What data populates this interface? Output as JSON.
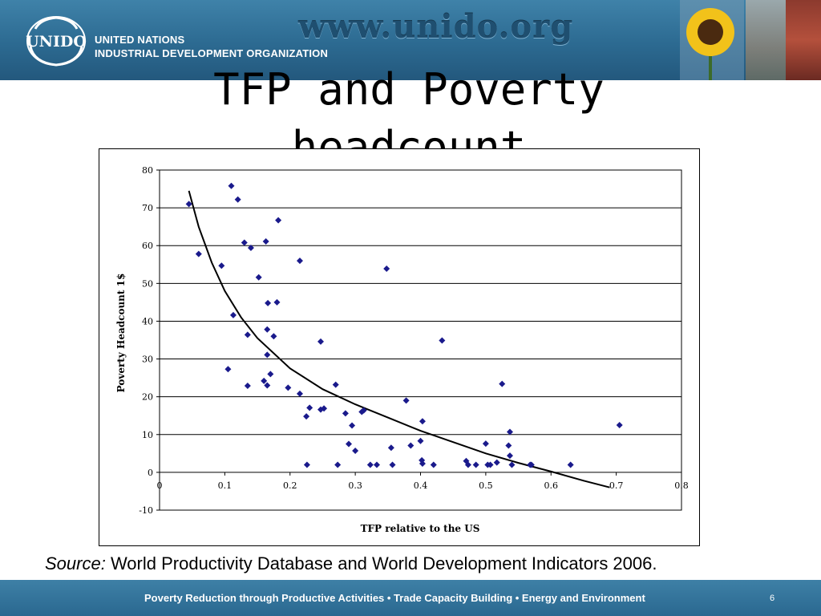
{
  "header": {
    "org_line1": "UNITED NATIONS",
    "org_line2": "INDUSTRIAL DEVELOPMENT ORGANIZATION",
    "logo_text": "UNIDO",
    "url": "www.unido.org"
  },
  "slide_title": "TFP and Poverty headcount",
  "source": {
    "label": "Source:",
    "text": " World Productivity Database and World Development Indicators 2006."
  },
  "footer": {
    "text": "Poverty Reduction through Productive Activities  •  Trade Capacity Building  •  Energy and Environment",
    "page": "6"
  },
  "chart_data": {
    "type": "scatter",
    "xlabel": "TFP relative to the US",
    "ylabel": "Poverty Headcount 1$",
    "xlim": [
      0,
      0.8
    ],
    "ylim": [
      -10,
      80
    ],
    "xticks": [
      "0",
      "0.1",
      "0.2",
      "0.3",
      "0.4",
      "0.5",
      "0.6",
      "0.7",
      "0.8"
    ],
    "yticks": [
      "-10",
      "0",
      "10",
      "20",
      "30",
      "40",
      "50",
      "60",
      "70",
      "80"
    ],
    "grid": "horizontal",
    "marker_color": "#1a1a8c",
    "trend_color": "#000000",
    "points": [
      [
        0.045,
        71
      ],
      [
        0.06,
        57.8
      ],
      [
        0.095,
        54.7
      ],
      [
        0.11,
        75.8
      ],
      [
        0.12,
        72.2
      ],
      [
        0.13,
        60.8
      ],
      [
        0.14,
        59.4
      ],
      [
        0.113,
        41.6
      ],
      [
        0.105,
        27.3
      ],
      [
        0.135,
        36.4
      ],
      [
        0.135,
        22.9
      ],
      [
        0.152,
        51.6
      ],
      [
        0.163,
        61.1
      ],
      [
        0.166,
        44.8
      ],
      [
        0.18,
        45
      ],
      [
        0.182,
        66.7
      ],
      [
        0.165,
        37.8
      ],
      [
        0.175,
        36
      ],
      [
        0.165,
        31.1
      ],
      [
        0.16,
        24.2
      ],
      [
        0.165,
        23
      ],
      [
        0.17,
        26
      ],
      [
        0.197,
        22.4
      ],
      [
        0.215,
        20.8
      ],
      [
        0.215,
        56
      ],
      [
        0.225,
        14.8
      ],
      [
        0.23,
        17.1
      ],
      [
        0.226,
        2
      ],
      [
        0.247,
        34.6
      ],
      [
        0.247,
        16.6
      ],
      [
        0.252,
        16.9
      ],
      [
        0.27,
        23.2
      ],
      [
        0.273,
        2
      ],
      [
        0.285,
        15.6
      ],
      [
        0.29,
        7.5
      ],
      [
        0.295,
        12.4
      ],
      [
        0.3,
        5.7
      ],
      [
        0.31,
        16
      ],
      [
        0.313,
        16.4
      ],
      [
        0.323,
        2
      ],
      [
        0.333,
        2
      ],
      [
        0.348,
        53.9
      ],
      [
        0.355,
        6.5
      ],
      [
        0.357,
        2
      ],
      [
        0.378,
        19
      ],
      [
        0.385,
        7.1
      ],
      [
        0.4,
        8.3
      ],
      [
        0.402,
        3.2
      ],
      [
        0.403,
        13.5
      ],
      [
        0.403,
        2.3
      ],
      [
        0.42,
        2
      ],
      [
        0.433,
        34.9
      ],
      [
        0.47,
        3
      ],
      [
        0.473,
        2
      ],
      [
        0.485,
        2
      ],
      [
        0.5,
        7.6
      ],
      [
        0.503,
        2
      ],
      [
        0.507,
        2
      ],
      [
        0.517,
        2.6
      ],
      [
        0.525,
        23.4
      ],
      [
        0.535,
        7.1
      ],
      [
        0.537,
        10.7
      ],
      [
        0.537,
        4.4
      ],
      [
        0.54,
        2
      ],
      [
        0.568,
        2
      ],
      [
        0.57,
        2
      ],
      [
        0.63,
        2
      ],
      [
        0.705,
        12.5
      ]
    ],
    "trendline": [
      [
        0.045,
        74.5
      ],
      [
        0.06,
        65
      ],
      [
        0.08,
        55.5
      ],
      [
        0.1,
        48
      ],
      [
        0.125,
        41
      ],
      [
        0.15,
        35.5
      ],
      [
        0.2,
        27.5
      ],
      [
        0.25,
        22
      ],
      [
        0.3,
        18
      ],
      [
        0.35,
        14.5
      ],
      [
        0.4,
        11
      ],
      [
        0.45,
        8
      ],
      [
        0.5,
        5
      ],
      [
        0.55,
        2.5
      ],
      [
        0.6,
        0.2
      ],
      [
        0.65,
        -2.2
      ],
      [
        0.69,
        -4
      ]
    ]
  }
}
